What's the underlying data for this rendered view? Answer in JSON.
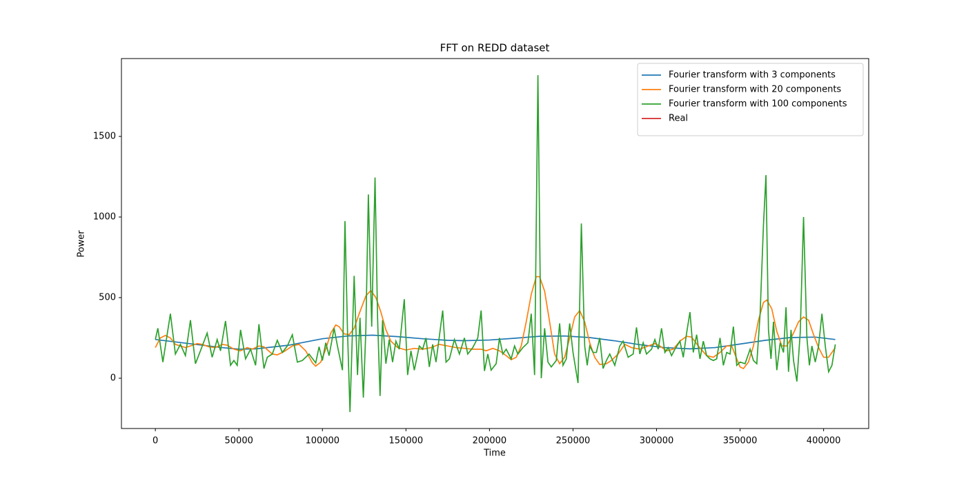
{
  "chart_data": {
    "type": "line",
    "title": "FFT on REDD dataset",
    "x_label": "Time",
    "y_label": "Power",
    "xlim": [
      -20300,
      427000
    ],
    "ylim": [
      -312,
      1983
    ],
    "xticks": [
      0,
      50000,
      100000,
      150000,
      200000,
      250000,
      300000,
      350000,
      400000
    ],
    "yticks": [
      0,
      500,
      1000,
      1500
    ],
    "legend": "upper right",
    "grid": false,
    "series": [
      {
        "name": "Fourier transform with 3 components",
        "color": "#1f77b4",
        "x": [
          0,
          20000,
          40000,
          50000,
          60000,
          80000,
          100000,
          115000,
          130000,
          145000,
          160000,
          175000,
          185000,
          200000,
          215000,
          230000,
          245000,
          260000,
          275000,
          290000,
          305000,
          320000,
          335000,
          350000,
          365000,
          380000,
          395000,
          407000
        ],
        "values": [
          240,
          215,
          190,
          180,
          182,
          205,
          245,
          262,
          267,
          258,
          245,
          235,
          233,
          237,
          248,
          260,
          262,
          252,
          232,
          208,
          190,
          182,
          190,
          212,
          235,
          252,
          255,
          240
        ]
      },
      {
        "name": "Fourier transform with 20 components",
        "color": "#ff7f0e",
        "x": [
          0,
          3000,
          6000,
          9000,
          12000,
          15000,
          18000,
          21000,
          25000,
          28000,
          32000,
          36000,
          40000,
          43000,
          47000,
          51000,
          55000,
          58000,
          62000,
          65000,
          70000,
          73000,
          77000,
          82000,
          86000,
          90000,
          94000,
          96000,
          99000,
          102000,
          105000,
          108000,
          110000,
          113000,
          116000,
          119000,
          122000,
          126000,
          129000,
          132000,
          135000,
          138000,
          141000,
          145000,
          150000,
          155000,
          160000,
          165000,
          170000,
          175000,
          180000,
          185000,
          190000,
          195000,
          198000,
          202000,
          206000,
          210000,
          213000,
          216000,
          219000,
          222000,
          225000,
          228000,
          230000,
          233000,
          236000,
          239000,
          242000,
          245000,
          248000,
          251000,
          254000,
          257000,
          260000,
          263000,
          266000,
          270000,
          273000,
          277000,
          281000,
          285000,
          290000,
          295000,
          299000,
          302000,
          306000,
          310000,
          314000,
          318000,
          321000,
          325000,
          330000,
          334000,
          338000,
          342000,
          345000,
          348000,
          350000,
          352000,
          355000,
          358000,
          361000,
          364000,
          366000,
          369000,
          372000,
          375000,
          378000,
          382000,
          385000,
          388000,
          391000,
          394000,
          397000,
          400000,
          403000,
          407000
        ],
        "values": [
          190,
          250,
          265,
          250,
          210,
          200,
          190,
          200,
          215,
          210,
          195,
          190,
          210,
          205,
          180,
          170,
          190,
          180,
          200,
          195,
          150,
          145,
          165,
          200,
          210,
          170,
          95,
          75,
          100,
          180,
          280,
          330,
          320,
          275,
          270,
          310,
          400,
          510,
          545,
          500,
          410,
          300,
          230,
          190,
          175,
          185,
          180,
          190,
          210,
          200,
          190,
          185,
          180,
          180,
          170,
          185,
          170,
          140,
          115,
          130,
          200,
          350,
          520,
          630,
          630,
          540,
          350,
          150,
          90,
          130,
          250,
          380,
          420,
          350,
          220,
          130,
          85,
          90,
          110,
          150,
          210,
          190,
          180,
          200,
          215,
          200,
          170,
          180,
          230,
          260,
          255,
          200,
          140,
          130,
          160,
          200,
          200,
          120,
          70,
          60,
          100,
          200,
          360,
          470,
          485,
          430,
          290,
          200,
          200,
          280,
          350,
          380,
          360,
          270,
          190,
          130,
          130,
          190
        ]
      },
      {
        "name": "Fourier transform with 100 components",
        "color": "#2ca02c",
        "x": [
          0,
          1500,
          4500,
          9000,
          12000,
          15000,
          18000,
          21000,
          24000,
          27000,
          31000,
          34000,
          37000,
          39000,
          42000,
          45000,
          47000,
          49000,
          51000,
          54000,
          57000,
          60000,
          62000,
          65000,
          67000,
          70000,
          73000,
          76000,
          79000,
          82000,
          85000,
          88000,
          92000,
          96000,
          98000,
          100000,
          102000,
          104000,
          107000,
          109000,
          112000,
          113500,
          115000,
          116500,
          119000,
          121000,
          122500,
          124500,
          126000,
          127500,
          129500,
          131500,
          133000,
          134500,
          136000,
          138000,
          140000,
          142000,
          144000,
          146000,
          149000,
          151000,
          153000,
          155000,
          158000,
          160000,
          162000,
          164000,
          166000,
          168000,
          172000,
          174000,
          176000,
          179000,
          182000,
          185000,
          187000,
          190000,
          193000,
          195000,
          197000,
          199000,
          201000,
          204000,
          206000,
          208000,
          210000,
          213000,
          215000,
          217000,
          220000,
          223000,
          225000,
          227000,
          229000,
          231000,
          233000,
          235000,
          237000,
          240000,
          242000,
          244000,
          246000,
          248000,
          250000,
          253000,
          255000,
          257000,
          258500,
          260000,
          262000,
          264000,
          266000,
          268000,
          270000,
          272000,
          275000,
          278000,
          280000,
          283000,
          286000,
          288000,
          290000,
          292000,
          294000,
          297000,
          299000,
          301000,
          303000,
          305000,
          307000,
          309000,
          311000,
          314000,
          316000,
          318000,
          320000,
          322000,
          324000,
          326000,
          328000,
          330000,
          332000,
          334000,
          336000,
          338000,
          340000,
          342000,
          344000,
          346000,
          348000,
          350000,
          353000,
          356000,
          358000,
          360000,
          362000,
          364000,
          365500,
          367000,
          368500,
          370000,
          372000,
          374000,
          376000,
          377500,
          379000,
          380500,
          382000,
          384000,
          386000,
          388000,
          390000,
          391500,
          393000,
          395000,
          397000,
          399000,
          401000,
          403000,
          405000,
          407000
        ],
        "values": [
          240,
          310,
          100,
          400,
          150,
          210,
          140,
          360,
          90,
          170,
          280,
          130,
          240,
          170,
          355,
          80,
          110,
          80,
          300,
          120,
          180,
          80,
          335,
          60,
          130,
          150,
          235,
          160,
          200,
          270,
          100,
          110,
          150,
          95,
          195,
          110,
          220,
          140,
          310,
          200,
          50,
          975,
          300,
          -210,
          635,
          20,
          375,
          -120,
          300,
          1140,
          320,
          1245,
          380,
          -110,
          360,
          90,
          240,
          100,
          230,
          180,
          490,
          20,
          170,
          50,
          200,
          180,
          250,
          70,
          210,
          100,
          420,
          100,
          120,
          240,
          150,
          250,
          150,
          190,
          250,
          420,
          45,
          150,
          50,
          90,
          250,
          150,
          180,
          120,
          200,
          150,
          190,
          220,
          400,
          20,
          1880,
          0,
          310,
          100,
          70,
          110,
          340,
          80,
          120,
          340,
          160,
          -30,
          960,
          200,
          80,
          200,
          160,
          160,
          250,
          60,
          110,
          150,
          80,
          200,
          230,
          130,
          150,
          315,
          150,
          220,
          150,
          180,
          240,
          180,
          310,
          160,
          190,
          140,
          180,
          230,
          130,
          280,
          410,
          160,
          270,
          120,
          230,
          140,
          120,
          110,
          120,
          250,
          80,
          160,
          150,
          320,
          80,
          100,
          90,
          180,
          110,
          90,
          400,
          950,
          1260,
          300,
          120,
          350,
          50,
          220,
          160,
          440,
          40,
          300,
          110,
          -20,
          280,
          1000,
          250,
          80,
          200,
          100,
          200,
          400,
          200,
          40,
          80,
          210
        ]
      },
      {
        "name": "Real",
        "color": "#d62728",
        "x": [],
        "values": []
      }
    ]
  }
}
